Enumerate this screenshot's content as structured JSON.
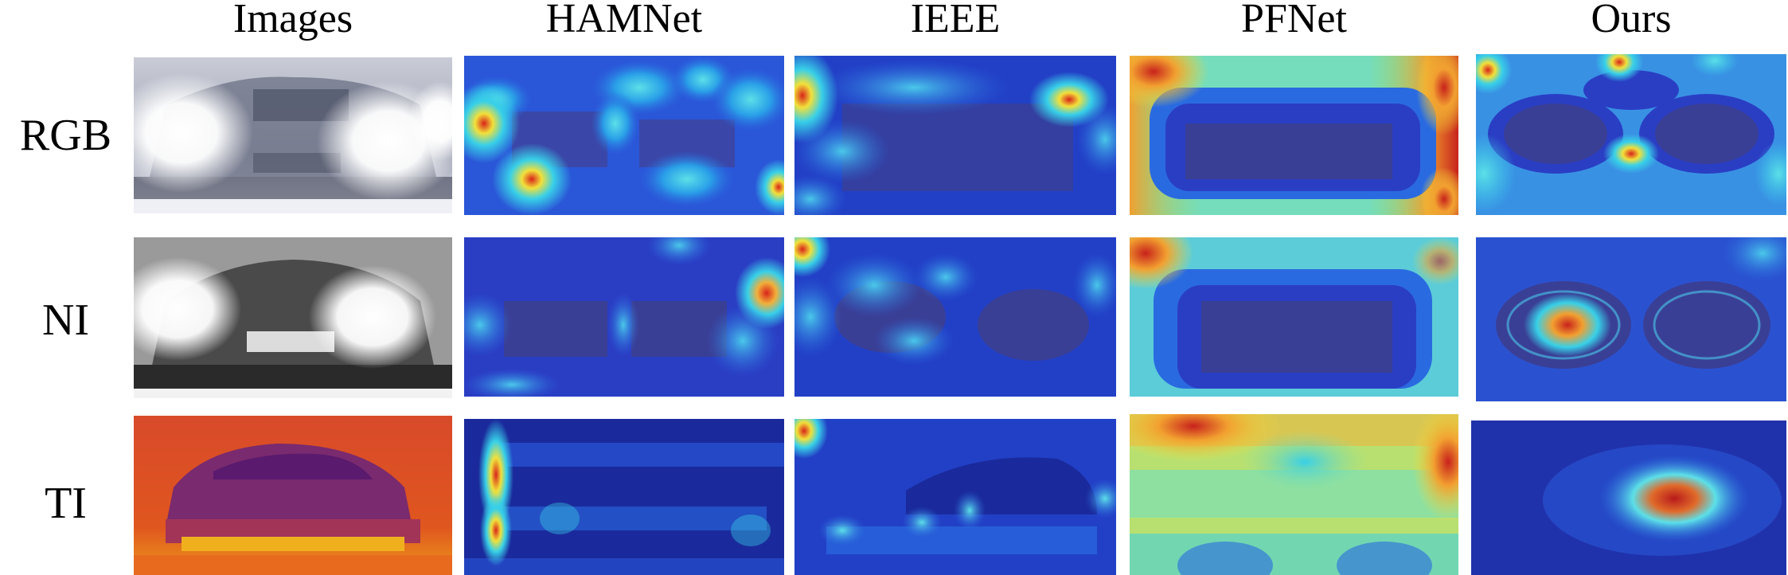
{
  "figure": {
    "columns": [
      "Images",
      "HAMNet",
      "IEEE",
      "PFNet",
      "Ours"
    ],
    "rows": [
      "RGB",
      "NI",
      "TI"
    ]
  },
  "colors": {
    "jet_low": "#1a2a9c",
    "jet_mid": "#38d0e8",
    "jet_yellow": "#f2e03a",
    "jet_high": "#d8241a",
    "thermal_bg": "#e0561f",
    "thermal_car": "#7a2a6e"
  }
}
